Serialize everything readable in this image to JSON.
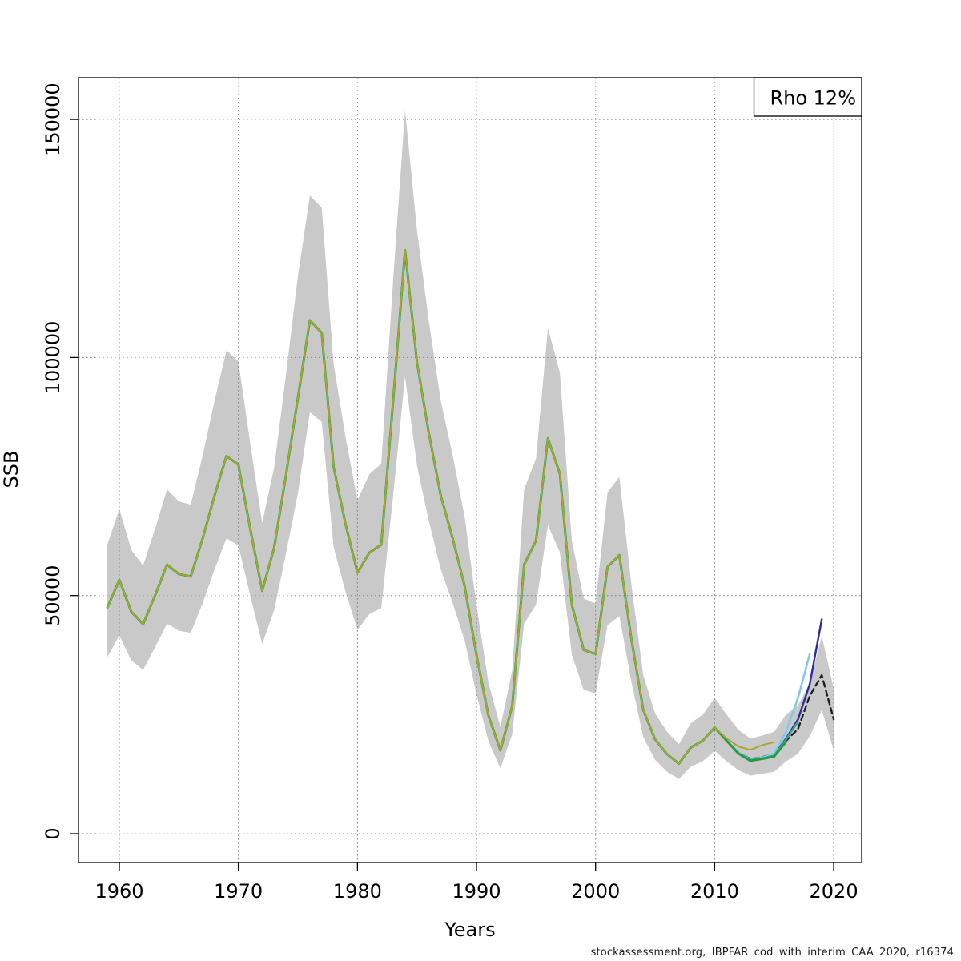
{
  "legend": {
    "label": "Rho 12%"
  },
  "footer": "stockassessment.org, IBPFAR cod with interim CAA 2020, r16374",
  "axes": {
    "x_label": "Years",
    "y_label": "SSB",
    "x_ticks": [
      1960,
      1970,
      1980,
      1990,
      2000,
      2010,
      2020
    ],
    "x_tick_labels": [
      "1960",
      "1970",
      "1980",
      "1990",
      "2000",
      "2010",
      "2020"
    ],
    "y_ticks": [
      0,
      50000,
      100000,
      150000
    ],
    "y_tick_labels": [
      "0",
      "50000",
      "100000",
      "150000"
    ],
    "grid": true
  },
  "colors": {
    "band": "#c9c9c9",
    "grid": "#808080",
    "frame": "#000000",
    "base": "#1c1c1c",
    "navy": "#2e2ba0",
    "lightblue": "#7ec9e8",
    "teal": "#3aa795",
    "green": "#219e3b",
    "olive": "#a8a632"
  },
  "chart_data": {
    "type": "line",
    "title": "",
    "xlabel": "Years",
    "ylabel": "SSB",
    "xlim": [
      1956.57,
      2022.35
    ],
    "ylim": [
      -6055,
      158760
    ],
    "legend_position": "top-right",
    "legend_text": "Rho 12%",
    "years": [
      1959,
      1960,
      1961,
      1962,
      1963,
      1964,
      1965,
      1966,
      1967,
      1968,
      1969,
      1970,
      1971,
      1972,
      1973,
      1974,
      1975,
      1976,
      1977,
      1978,
      1979,
      1980,
      1981,
      1982,
      1983,
      1984,
      1985,
      1986,
      1987,
      1988,
      1989,
      1990,
      1991,
      1992,
      1993,
      1994,
      1995,
      1996,
      1997,
      1998,
      1999,
      2000,
      2001,
      2002,
      2003,
      2004,
      2005,
      2006,
      2007,
      2008,
      2009,
      2010,
      2011,
      2012,
      2013,
      2014,
      2015,
      2016,
      2017,
      2018,
      2019,
      2020
    ],
    "base_run": {
      "name": "base-run-2020",
      "style": "dashed",
      "color_key": "base",
      "values": [
        47500,
        53300,
        46600,
        44000,
        50000,
        56500,
        54500,
        54000,
        62000,
        71000,
        79300,
        77500,
        64000,
        51000,
        60000,
        75300,
        91500,
        107800,
        105200,
        77000,
        65000,
        54800,
        59000,
        60700,
        91000,
        122500,
        99000,
        84000,
        71000,
        62000,
        52000,
        37500,
        24800,
        17500,
        26800,
        56500,
        61600,
        83000,
        75600,
        48100,
        38600,
        37700,
        56000,
        58500,
        41000,
        26000,
        19800,
        16700,
        14700,
        18100,
        19500,
        22300,
        19500,
        17000,
        15600,
        16100,
        16700,
        19500,
        22000,
        29000,
        33300,
        24000
      ]
    },
    "confidence_band": {
      "applies_to": "base-run-2020",
      "lo": [
        37100,
        41600,
        36400,
        34400,
        39100,
        44100,
        42600,
        42200,
        48400,
        55500,
        62000,
        60500,
        50000,
        39800,
        46900,
        58800,
        71500,
        88500,
        86500,
        60200,
        50800,
        42800,
        46100,
        47400,
        71100,
        96000,
        77300,
        65600,
        55500,
        48400,
        40600,
        29300,
        19400,
        13700,
        20900,
        44100,
        48100,
        64800,
        59100,
        37600,
        30200,
        29500,
        43800,
        45700,
        32000,
        20300,
        15500,
        13000,
        11500,
        14100,
        15200,
        17400,
        15200,
        13300,
        12200,
        12600,
        13000,
        15200,
        16800,
        20500,
        26000,
        17500
      ],
      "hi": [
        60800,
        68200,
        59600,
        56300,
        64000,
        72300,
        69800,
        69100,
        79400,
        90900,
        101500,
        99200,
        81900,
        65300,
        76800,
        96400,
        117100,
        134000,
        131500,
        98600,
        83200,
        70100,
        75500,
        77700,
        116500,
        152000,
        126700,
        107500,
        90900,
        79400,
        66600,
        48000,
        31700,
        22400,
        34300,
        72300,
        78800,
        106200,
        96800,
        61600,
        49400,
        48300,
        71700,
        74900,
        52500,
        33300,
        25300,
        21400,
        18800,
        23200,
        25000,
        28500,
        25000,
        21800,
        20000,
        20600,
        21400,
        25000,
        27000,
        31500,
        41500,
        30500
      ]
    },
    "retro_peels": [
      {
        "name": "peel-2019",
        "color_key": "navy",
        "end_year": 2019,
        "tail_start": 2012,
        "tail_values": [
          17000,
          15700,
          16000,
          16500,
          20000,
          24000,
          31500,
          45000
        ]
      },
      {
        "name": "peel-2018",
        "color_key": "lightblue",
        "end_year": 2018,
        "tail_start": 2012,
        "tail_values": [
          17000,
          15600,
          16000,
          16800,
          21500,
          28500,
          37800
        ]
      },
      {
        "name": "peel-2017",
        "color_key": "teal",
        "end_year": 2017,
        "tail_start": 2012,
        "tail_values": [
          16900,
          15500,
          15800,
          16400,
          19800,
          23500
        ]
      },
      {
        "name": "peel-2016",
        "color_key": "green",
        "end_year": 2016,
        "tail_start": 2012,
        "tail_values": [
          16800,
          15300,
          15700,
          16200,
          19300
        ]
      },
      {
        "name": "peel-2015",
        "color_key": "olive",
        "end_year": 2015,
        "tail_start": 2011,
        "tail_values": [
          20000,
          18300,
          17600,
          18600,
          19200
        ]
      }
    ]
  }
}
